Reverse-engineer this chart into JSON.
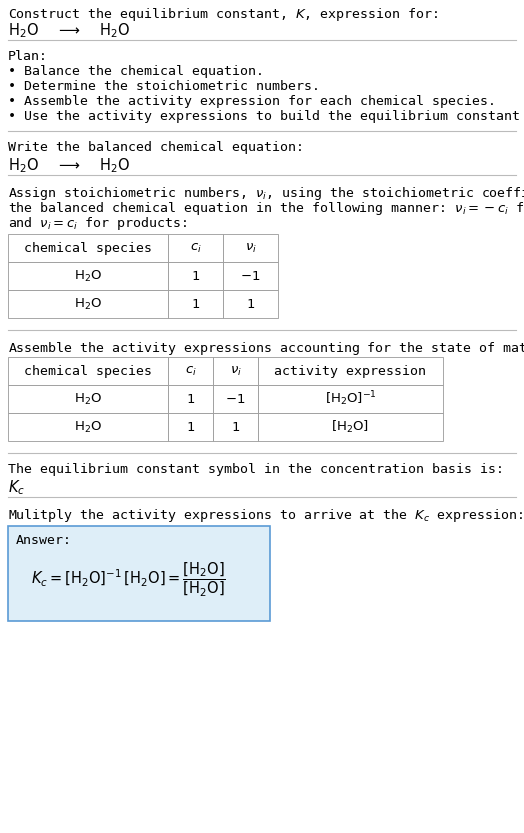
{
  "title_line1": "Construct the equilibrium constant, $K$, expression for:",
  "title_line2": "$\\mathrm{H_2O}$  $\\longrightarrow$  $\\mathrm{H_2O}$",
  "plan_header": "Plan:",
  "plan_bullets": [
    "• Balance the chemical equation.",
    "• Determine the stoichiometric numbers.",
    "• Assemble the activity expression for each chemical species.",
    "• Use the activity expressions to build the equilibrium constant expression."
  ],
  "balanced_eq_header": "Write the balanced chemical equation:",
  "balanced_eq": "$\\mathrm{H_2O}$  $\\longrightarrow$  $\\mathrm{H_2O}$",
  "stoich_intro_1": "Assign stoichiometric numbers, $\\nu_i$, using the stoichiometric coefficients, $c_i$, from",
  "stoich_intro_2": "the balanced chemical equation in the following manner: $\\nu_i = -c_i$ for reactants",
  "stoich_intro_3": "and $\\nu_i = c_i$ for products:",
  "table1_headers": [
    "chemical species",
    "$c_i$",
    "$\\nu_i$"
  ],
  "table1_rows": [
    [
      "$\\mathrm{H_2O}$",
      "1",
      "$-1$"
    ],
    [
      "$\\mathrm{H_2O}$",
      "1",
      "1"
    ]
  ],
  "activity_intro": "Assemble the activity expressions accounting for the state of matter and $\\nu_i$:",
  "table2_headers": [
    "chemical species",
    "$c_i$",
    "$\\nu_i$",
    "activity expression"
  ],
  "table2_rows": [
    [
      "$\\mathrm{H_2O}$",
      "1",
      "$-1$",
      "$[\\mathrm{H_2O}]^{-1}$"
    ],
    [
      "$\\mathrm{H_2O}$",
      "1",
      "1",
      "$[\\mathrm{H_2O}]$"
    ]
  ],
  "kc_text": "The equilibrium constant symbol in the concentration basis is:",
  "kc_symbol": "$K_c$",
  "multiply_text": "Mulitply the activity expressions to arrive at the $K_c$ expression:",
  "answer_label": "Answer:",
  "bg_color": "#ffffff",
  "text_color": "#000000",
  "table_bg": "#ffffff",
  "table_border": "#999999",
  "answer_bg": "#deeef8",
  "answer_border": "#5b9bd5",
  "separator_color": "#bbbbbb",
  "font_size": 9.5,
  "mono_font": "DejaVu Sans Mono"
}
